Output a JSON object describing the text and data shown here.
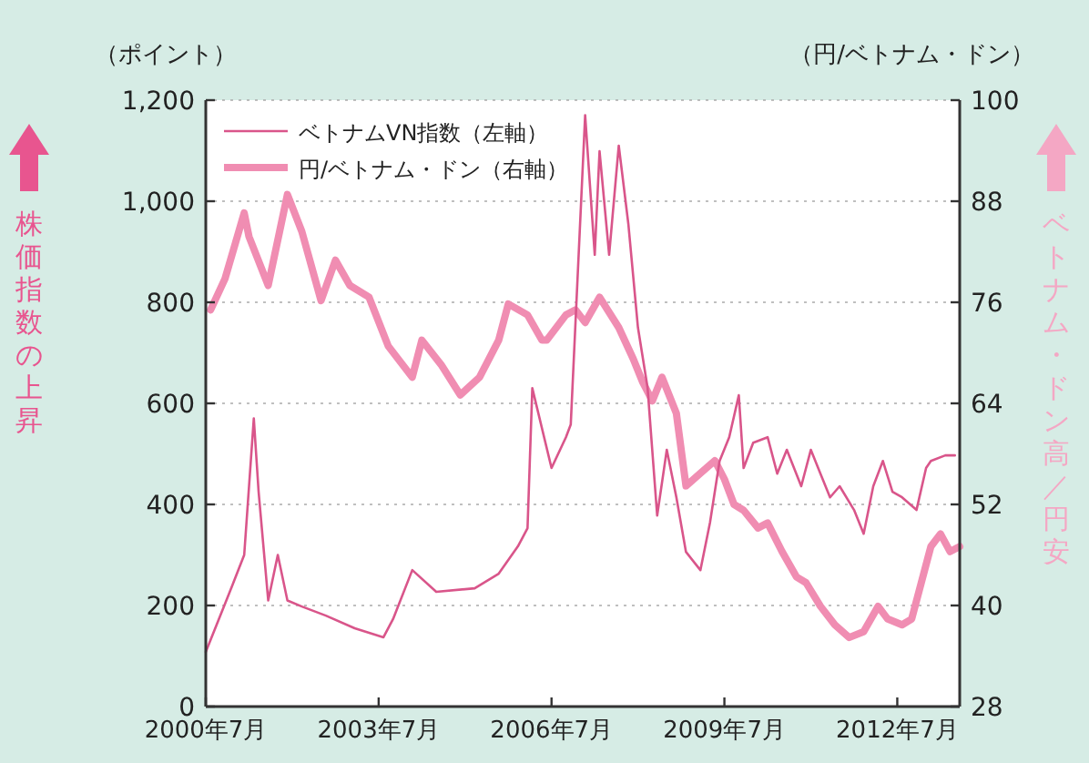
{
  "chart_data": {
    "type": "line",
    "ylabel": "（ポイント）",
    "y2label": "（円/ベトナム・ドン）",
    "annotations": [
      "株価指数の上昇",
      "ベトナム・ドン高／円安"
    ],
    "xlim": [
      "2000-07",
      "2013-08"
    ],
    "xticks": [
      {
        "value": "2000-07",
        "label": "2000年7月"
      },
      {
        "value": "2003-07",
        "label": "2003年7月"
      },
      {
        "value": "2006-07",
        "label": "2006年7月"
      },
      {
        "value": "2009-07",
        "label": "2009年7月"
      },
      {
        "value": "2012-07",
        "label": "2012年7月"
      }
    ],
    "ylim": [
      0,
      1200
    ],
    "yticks": [
      0,
      200,
      400,
      600,
      800,
      {
        "value": 1000,
        "label": "1,000"
      },
      {
        "value": 1200,
        "label": "1,200"
      }
    ],
    "y2lim": [
      28,
      100
    ],
    "y2ticks": [
      28,
      40,
      52,
      64,
      76,
      88,
      100
    ],
    "grid": "y",
    "legend": "top left",
    "series": [
      {
        "name": "ベトナムVN指数（左軸）",
        "color": "#d9558a",
        "axis": "y",
        "x": [
          "2000-07",
          "2000-12",
          "2001-03",
          "2001-05",
          "2001-06",
          "2001-08",
          "2001-10",
          "2001-12",
          "2002-03",
          "2002-08",
          "2003-02",
          "2003-08",
          "2003-10",
          "2004-02",
          "2004-07",
          "2005-03",
          "2005-08",
          "2005-12",
          "2006-02",
          "2006-03",
          "2006-07",
          "2006-10",
          "2006-11",
          "2007-02",
          "2007-04",
          "2007-05",
          "2007-07",
          "2007-09",
          "2007-11",
          "2008-01",
          "2008-03",
          "2008-05",
          "2008-07",
          "2008-09",
          "2008-11",
          "2009-02",
          "2009-04",
          "2009-06",
          "2009-08",
          "2009-10",
          "2009-11",
          "2010-01",
          "2010-04",
          "2010-06",
          "2010-08",
          "2010-11",
          "2011-01",
          "2011-03",
          "2011-05",
          "2011-07",
          "2011-10",
          "2011-12",
          "2012-02",
          "2012-04",
          "2012-06",
          "2012-08",
          "2012-11",
          "2013-01",
          "2013-02",
          "2013-05",
          "2013-07"
        ],
        "values": [
          108,
          227,
          300,
          570,
          425,
          210,
          300,
          210,
          198,
          180,
          155,
          137,
          173,
          270,
          227,
          234,
          263,
          317,
          353,
          630,
          472,
          533,
          558,
          1170,
          894,
          1099,
          894,
          1110,
          955,
          750,
          631,
          378,
          508,
          414,
          306,
          270,
          364,
          486,
          533,
          616,
          472,
          522,
          533,
          461,
          508,
          436,
          508,
          461,
          414,
          436,
          389,
          342,
          436,
          486,
          425,
          414,
          389,
          472,
          486,
          497,
          497
        ]
      },
      {
        "name": "円/ベトナム・ドン（右軸）",
        "color": "#f08db2",
        "axis": "y2",
        "x": [
          "2000-08",
          "2000-11",
          "2001-03",
          "2001-04",
          "2001-08",
          "2001-12",
          "2002-03",
          "2002-07",
          "2002-10",
          "2003-01",
          "2003-05",
          "2003-09",
          "2004-02",
          "2004-04",
          "2004-08",
          "2004-12",
          "2005-04",
          "2005-08",
          "2005-10",
          "2006-02",
          "2006-05",
          "2006-06",
          "2006-10",
          "2006-12",
          "2007-02",
          "2007-05",
          "2007-09",
          "2007-12",
          "2008-02",
          "2008-04",
          "2008-06",
          "2008-09",
          "2008-11",
          "2009-02",
          "2009-05",
          "2009-07",
          "2009-09",
          "2009-11",
          "2010-02",
          "2010-04",
          "2010-07",
          "2010-10",
          "2010-12",
          "2011-03",
          "2011-06",
          "2011-09",
          "2011-12",
          "2012-03",
          "2012-05",
          "2012-08",
          "2012-10",
          "2012-12",
          "2013-02",
          "2013-04",
          "2013-06",
          "2013-08"
        ],
        "values": [
          75.1,
          78.8,
          86.6,
          83.8,
          78,
          88.8,
          84.4,
          76.2,
          81,
          78,
          76.6,
          70.8,
          67.1,
          71.5,
          68.6,
          65,
          67.1,
          71.5,
          75.8,
          74.5,
          71.5,
          71.5,
          74.5,
          75.1,
          73.6,
          76.6,
          73,
          69.3,
          66.5,
          64.3,
          67.1,
          62.8,
          54.2,
          55.7,
          57.2,
          55,
          52,
          51.3,
          49.2,
          49.8,
          46.4,
          43.4,
          42.7,
          39.9,
          37.7,
          36.2,
          36.9,
          39.9,
          38.4,
          37.7,
          38.4,
          42.7,
          47,
          48.5,
          46.4,
          47
        ]
      }
    ]
  }
}
